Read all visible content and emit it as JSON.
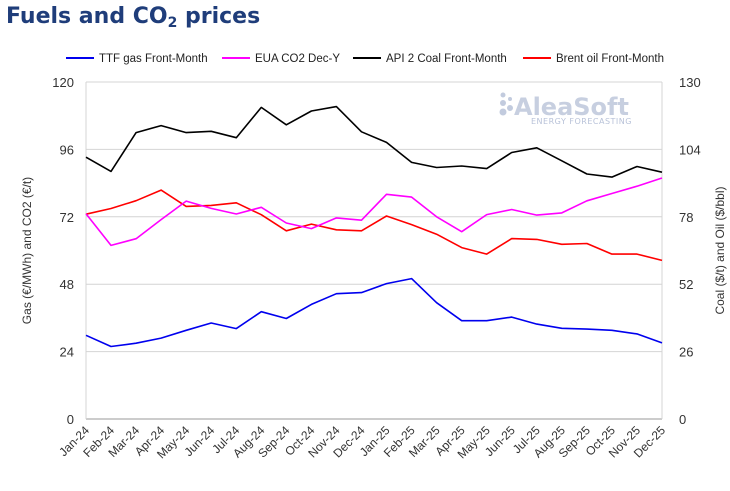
{
  "title": {
    "main": "Fuels and CO",
    "sub": "2",
    "tail": " prices"
  },
  "logo": {
    "name": "AleaSoft",
    "tagline": "ENERGY FORECASTING"
  },
  "chart_data": {
    "type": "line",
    "title": "Fuels and CO2 prices",
    "xlabel": "",
    "ylabel_left": "Gas (€/MWh) and CO2 (€/t)",
    "ylabel_right": "Coal ($/t) and Oil ($/bbl)",
    "ylim_left": [
      0,
      120
    ],
    "ylim_right": [
      0,
      130
    ],
    "yticks_left": [
      0,
      24,
      48,
      72,
      96,
      120
    ],
    "yticks_right": [
      0,
      26,
      52,
      78,
      104,
      130
    ],
    "categories": [
      "Jan-24",
      "Feb-24",
      "Mar-24",
      "Apr-24",
      "May-24",
      "Jun-24",
      "Jul-24",
      "Aug-24",
      "Sep-24",
      "Oct-24",
      "Nov-24",
      "Dec-24",
      "Jan-25",
      "Feb-25",
      "Mar-25",
      "Apr-25",
      "May-25",
      "Jun-25",
      "Jul-25",
      "Aug-25",
      "Sep-25",
      "Oct-25",
      "Nov-25",
      "Dec-25"
    ],
    "series": [
      {
        "name": "TTF gas Front-Month",
        "axis": "left",
        "color": "#0000ee",
        "values": [
          29.8,
          25.8,
          27.0,
          28.8,
          31.6,
          34.2,
          32.2,
          38.2,
          35.8,
          40.8,
          44.6,
          45.0,
          48.2,
          50.0,
          41.4,
          35.0,
          35.0,
          36.3,
          33.8,
          32.3,
          32.0,
          31.6,
          30.3,
          27.1
        ]
      },
      {
        "name": "EUA CO2 Dec-Y",
        "axis": "left",
        "color": "#ff00ff",
        "values": [
          73.1,
          61.8,
          64.2,
          71.0,
          77.6,
          75.0,
          73.0,
          75.4,
          69.8,
          67.8,
          71.6,
          70.8,
          80.0,
          79.0,
          72.0,
          66.7,
          72.8,
          74.6,
          72.6,
          73.4,
          77.7,
          80.3,
          82.9,
          85.8
        ]
      },
      {
        "name": "API 2 Coal Front-Month",
        "axis": "right",
        "color": "#000000",
        "values": [
          101.0,
          95.5,
          110.5,
          113.2,
          110.5,
          111.0,
          108.5,
          120.2,
          113.5,
          118.8,
          120.5,
          110.8,
          106.7,
          99.0,
          97.0,
          97.6,
          96.6,
          102.8,
          104.6,
          99.6,
          94.5,
          93.3,
          97.4,
          95.2
        ]
      },
      {
        "name": "Brent oil Front-Month",
        "axis": "right",
        "color": "#ff0000",
        "values": [
          79.0,
          81.2,
          84.2,
          88.3,
          82.0,
          82.4,
          83.4,
          78.8,
          72.6,
          75.2,
          73.0,
          72.6,
          78.3,
          75.0,
          71.3,
          66.1,
          63.6,
          69.6,
          69.3,
          67.4,
          67.7,
          63.6,
          63.6,
          61.2
        ]
      }
    ],
    "legend_position": "top"
  }
}
